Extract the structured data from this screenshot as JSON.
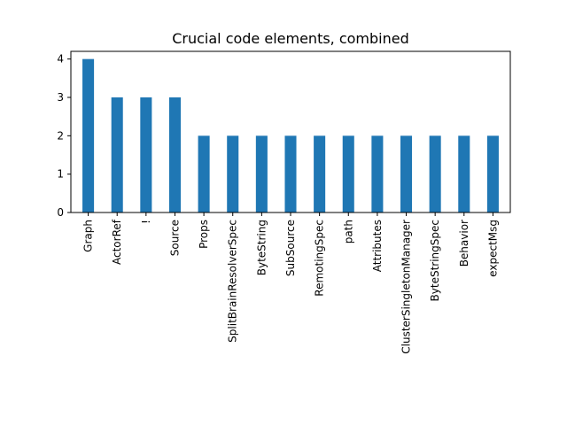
{
  "chart_data": {
    "type": "bar",
    "title": "Crucial code elements, combined",
    "xlabel": "",
    "ylabel": "",
    "categories": [
      "Graph",
      "ActorRef",
      "!",
      "Source",
      "Props",
      "SplitBrainResolverSpec",
      "ByteString",
      "SubSource",
      "RemotingSpec",
      "path",
      "Attributes",
      "ClusterSingletonManager",
      "ByteStringSpec",
      "Behavior",
      "expectMsg"
    ],
    "values": [
      4,
      3,
      3,
      3,
      2,
      2,
      2,
      2,
      2,
      2,
      2,
      2,
      2,
      2,
      2
    ],
    "ylim": [
      0,
      4.2
    ],
    "yticks": [
      0,
      1,
      2,
      3,
      4
    ],
    "bar_color": "#1f77b4",
    "grid": false,
    "legend": "none"
  }
}
